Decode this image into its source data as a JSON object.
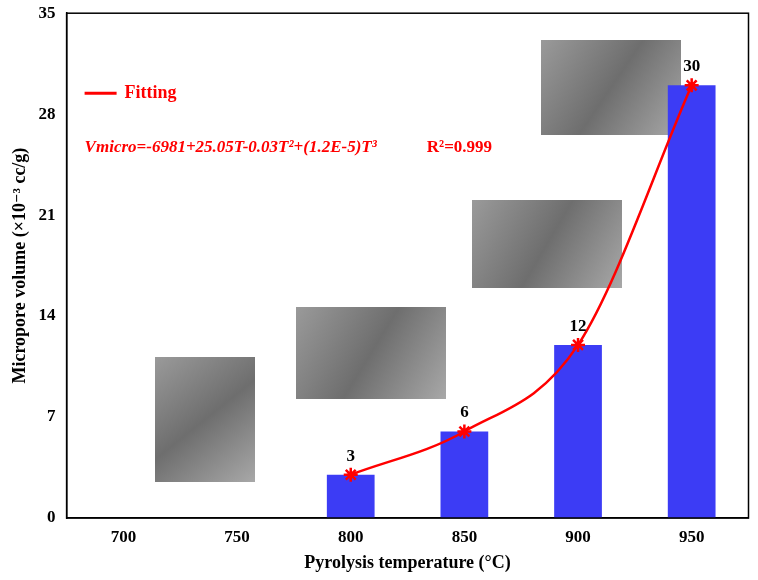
{
  "chart_data": {
    "type": "bar",
    "x_label": "Pyrolysis temperature (°C)",
    "y_label": "Micropore volume (×10⁻³ cc/g)",
    "categories": [
      "700",
      "750",
      "800",
      "850",
      "900",
      "950"
    ],
    "series": [
      {
        "type": "bar",
        "color": "#3c3cf5",
        "values": [
          null,
          null,
          3,
          6,
          12,
          30
        ]
      },
      {
        "name": "Fitting",
        "type": "line",
        "color": "#ff0000",
        "marker": "star",
        "line_style": "solid",
        "values": [
          null,
          null,
          3,
          6,
          12,
          30
        ]
      }
    ],
    "ylim": [
      0,
      35
    ],
    "yticks": [
      0,
      7,
      14,
      21,
      28,
      35
    ],
    "annotations": [
      "Vmicro=-6981+25.05T-0.03T²+(1.2E-5)T³",
      "R²=0.999"
    ],
    "data_labels": true,
    "legend": "top-left",
    "grid": false
  }
}
